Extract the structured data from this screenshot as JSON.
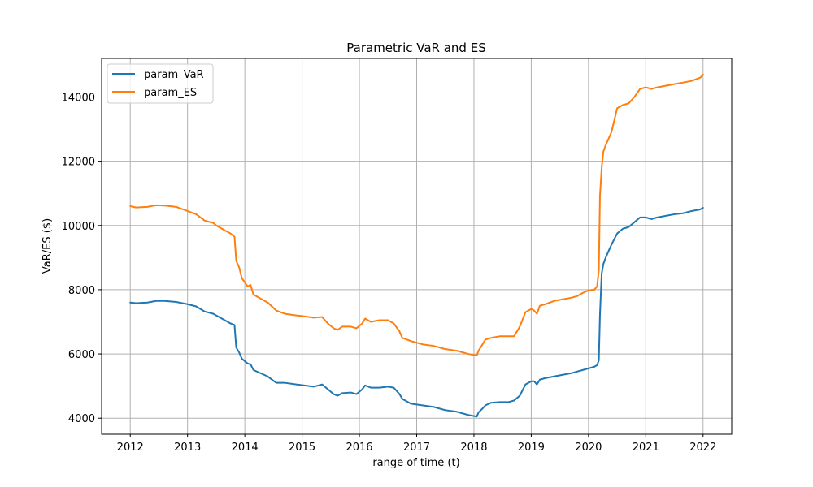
{
  "chart_data": {
    "type": "line",
    "title": "Parametric VaR and ES",
    "xlabel": "range of time (t)",
    "ylabel": "VaR/ES ($)",
    "xlim": [
      2011.5,
      2022.5
    ],
    "ylim": [
      3500,
      15200
    ],
    "x_ticks": [
      2012,
      2013,
      2014,
      2015,
      2016,
      2017,
      2018,
      2019,
      2020,
      2021,
      2022
    ],
    "y_ticks": [
      4000,
      6000,
      8000,
      10000,
      12000,
      14000
    ],
    "grid": true,
    "legend_position": "top-left",
    "series": [
      {
        "name": "param_VaR",
        "color": "#1f77b4",
        "x": [
          2012.0,
          2012.1,
          2012.3,
          2012.45,
          2012.6,
          2012.8,
          2013.0,
          2013.15,
          2013.3,
          2013.45,
          2013.5,
          2013.65,
          2013.75,
          2013.82,
          2013.85,
          2013.9,
          2013.95,
          2014.05,
          2014.1,
          2014.15,
          2014.25,
          2014.4,
          2014.55,
          2014.7,
          2014.9,
          2015.0,
          2015.2,
          2015.35,
          2015.45,
          2015.55,
          2015.62,
          2015.7,
          2015.85,
          2015.95,
          2016.05,
          2016.1,
          2016.2,
          2016.35,
          2016.5,
          2016.6,
          2016.7,
          2016.75,
          2016.9,
          2017.1,
          2017.3,
          2017.5,
          2017.7,
          2017.9,
          2018.05,
          2018.08,
          2018.15,
          2018.2,
          2018.3,
          2018.45,
          2018.6,
          2018.7,
          2018.8,
          2018.9,
          2019.0,
          2019.05,
          2019.1,
          2019.15,
          2019.25,
          2019.4,
          2019.55,
          2019.7,
          2019.8,
          2019.9,
          2020.0,
          2020.1,
          2020.15,
          2020.18,
          2020.2,
          2020.23,
          2020.26,
          2020.3,
          2020.35,
          2020.4,
          2020.5,
          2020.6,
          2020.7,
          2020.8,
          2020.9,
          2021.0,
          2021.1,
          2021.2,
          2021.35,
          2021.5,
          2021.65,
          2021.8,
          2021.95,
          2022.0
        ],
        "values": [
          7600,
          7580,
          7600,
          7650,
          7650,
          7620,
          7550,
          7480,
          7320,
          7250,
          7200,
          7050,
          6950,
          6900,
          6200,
          6050,
          5850,
          5700,
          5680,
          5500,
          5420,
          5300,
          5100,
          5100,
          5050,
          5030,
          4980,
          5050,
          4900,
          4750,
          4700,
          4780,
          4800,
          4750,
          4900,
          5020,
          4950,
          4950,
          4980,
          4950,
          4750,
          4600,
          4450,
          4400,
          4350,
          4250,
          4200,
          4100,
          4050,
          4180,
          4300,
          4400,
          4480,
          4500,
          4500,
          4550,
          4700,
          5050,
          5150,
          5150,
          5050,
          5200,
          5250,
          5300,
          5350,
          5400,
          5450,
          5500,
          5550,
          5600,
          5650,
          5800,
          7200,
          8500,
          8800,
          9000,
          9200,
          9400,
          9750,
          9900,
          9950,
          10100,
          10250,
          10250,
          10200,
          10250,
          10300,
          10350,
          10380,
          10450,
          10500,
          10550
        ]
      },
      {
        "name": "param_ES",
        "color": "#ff7f0e",
        "x": [
          2012.0,
          2012.1,
          2012.3,
          2012.45,
          2012.6,
          2012.8,
          2013.0,
          2013.15,
          2013.3,
          2013.45,
          2013.5,
          2013.65,
          2013.75,
          2013.82,
          2013.85,
          2013.9,
          2013.95,
          2014.05,
          2014.1,
          2014.15,
          2014.25,
          2014.4,
          2014.55,
          2014.7,
          2014.9,
          2015.0,
          2015.2,
          2015.35,
          2015.45,
          2015.55,
          2015.62,
          2015.7,
          2015.85,
          2015.95,
          2016.05,
          2016.1,
          2016.2,
          2016.35,
          2016.5,
          2016.6,
          2016.7,
          2016.75,
          2016.9,
          2017.1,
          2017.3,
          2017.5,
          2017.7,
          2017.9,
          2018.05,
          2018.08,
          2018.15,
          2018.2,
          2018.3,
          2018.45,
          2018.6,
          2018.7,
          2018.8,
          2018.9,
          2019.0,
          2019.05,
          2019.1,
          2019.15,
          2019.25,
          2019.4,
          2019.55,
          2019.7,
          2019.8,
          2019.9,
          2020.0,
          2020.1,
          2020.15,
          2020.18,
          2020.2,
          2020.23,
          2020.26,
          2020.3,
          2020.35,
          2020.4,
          2020.5,
          2020.6,
          2020.7,
          2020.8,
          2020.9,
          2021.0,
          2021.1,
          2021.2,
          2021.35,
          2021.5,
          2021.65,
          2021.8,
          2021.95,
          2022.0
        ],
        "values": [
          10600,
          10560,
          10580,
          10630,
          10620,
          10580,
          10450,
          10350,
          10150,
          10080,
          10000,
          9850,
          9750,
          9650,
          8900,
          8700,
          8350,
          8100,
          8150,
          7850,
          7750,
          7600,
          7350,
          7250,
          7200,
          7180,
          7130,
          7150,
          6950,
          6800,
          6750,
          6850,
          6850,
          6800,
          6950,
          7100,
          7000,
          7050,
          7050,
          6950,
          6700,
          6500,
          6400,
          6300,
          6250,
          6150,
          6100,
          6000,
          5950,
          6100,
          6300,
          6450,
          6500,
          6550,
          6550,
          6550,
          6850,
          7300,
          7400,
          7350,
          7250,
          7500,
          7550,
          7650,
          7700,
          7750,
          7800,
          7900,
          7980,
          8000,
          8100,
          8600,
          10900,
          11800,
          12300,
          12500,
          12700,
          12900,
          13650,
          13750,
          13800,
          14000,
          14250,
          14300,
          14250,
          14300,
          14350,
          14400,
          14450,
          14500,
          14600,
          14700
        ]
      }
    ]
  }
}
